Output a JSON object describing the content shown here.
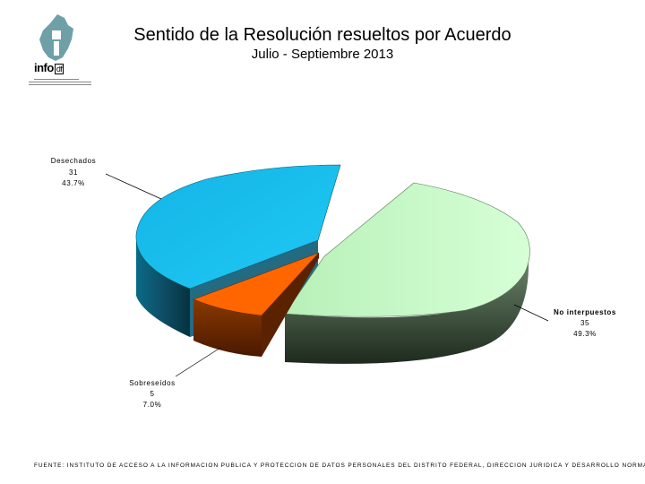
{
  "header": {
    "title": "Sentido de la Resolución resueltos por Acuerdo",
    "subtitle": "Julio - Septiembre 2013"
  },
  "logo": {
    "word": "info",
    "suffix": "df"
  },
  "footer": {
    "text": "FUENTE: INSTITUTO DE ACCESO A LA INFORMACION PUBLICA Y PROTECCION DE DATOS PERSONALES DEL DISTRITO FEDERAL, DIRECCION JURIDICA Y DESARROLLO NORMATIVO"
  },
  "chart_data": {
    "type": "pie",
    "style": "3d-exploded",
    "title": "Sentido de la Resolución resueltos por Acuerdo",
    "subtitle": "Julio - Septiembre 2013",
    "slices": [
      {
        "name": "No interpuestos",
        "value": 35,
        "percent": "49.3%",
        "color": "#c8ffc8",
        "side": "#4a5a4a"
      },
      {
        "name": "Sobreseídos",
        "value": 5,
        "percent": "7.0%",
        "color": "#ff6a00",
        "side": "#6a2a00"
      },
      {
        "name": "Desechados",
        "value": 31,
        "percent": "43.7%",
        "color": "#19c3f0",
        "side": "#0a4a5e"
      }
    ]
  }
}
